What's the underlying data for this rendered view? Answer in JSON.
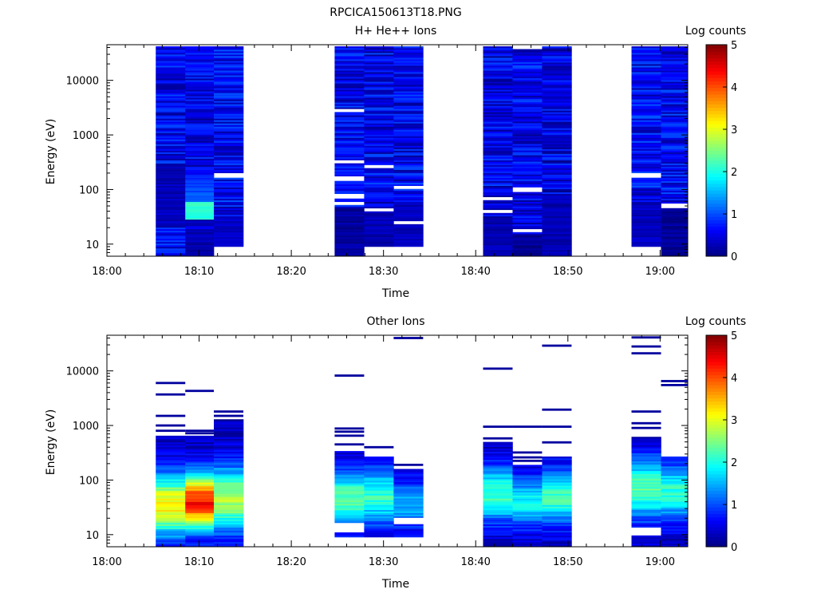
{
  "page_title": "RPCICA150613T18.PNG",
  "chart_data": [
    {
      "type": "heatmap",
      "title": "H+ He++ Ions",
      "xlabel": "Time",
      "ylabel": "Energy (eV)",
      "xticks": [
        "18:00",
        "18:10",
        "18:20",
        "18:30",
        "18:40",
        "18:50",
        "19:00"
      ],
      "xlim_minutes": [
        0,
        63
      ],
      "ylim": [
        6,
        45000
      ],
      "y_scale": "log",
      "yticks": [
        {
          "value": 10,
          "label": "10"
        },
        {
          "value": 100,
          "label": "100"
        },
        {
          "value": 1000,
          "label": "1000"
        },
        {
          "value": 10000,
          "label": "10000"
        }
      ],
      "colorbar": {
        "label": "Log counts",
        "range": [
          0,
          5
        ],
        "ticks": [
          "0",
          "1",
          "2",
          "3",
          "4",
          "5"
        ],
        "colormap": "jet"
      },
      "sweeps": [
        {
          "t_start": 5.3,
          "t_end": 8.5,
          "e_min": 6,
          "e_max": 42000,
          "base_level": 0.55,
          "gaps": [],
          "features": [
            {
              "e_min": 20,
              "e_max": 300,
              "level": 0.3
            }
          ]
        },
        {
          "t_start": 8.5,
          "t_end": 11.6,
          "e_min": 6,
          "e_max": 42000,
          "base_level": 0.5,
          "gaps": [],
          "features": [
            {
              "e_min": 28,
              "e_max": 60,
              "level": 2.1
            },
            {
              "e_min": 60,
              "e_max": 150,
              "level": 1.0
            },
            {
              "e_min": 6,
              "e_max": 18,
              "level": 0.25
            }
          ]
        },
        {
          "t_start": 11.6,
          "t_end": 14.8,
          "e_min": 9,
          "e_max": 42000,
          "base_level": 0.6,
          "gaps": [
            180
          ],
          "features": [
            {
              "e_min": 9,
              "e_max": 30,
              "level": 0.35
            }
          ]
        },
        {
          "t_start": 24.7,
          "t_end": 27.9,
          "e_min": 6,
          "e_max": 42000,
          "base_level": 0.55,
          "gaps": [
            2800,
            330,
            160,
            75,
            55
          ],
          "features": [
            {
              "e_min": 6,
              "e_max": 45,
              "level": 0.15
            }
          ]
        },
        {
          "t_start": 27.9,
          "t_end": 31.1,
          "e_min": 9,
          "e_max": 42000,
          "base_level": 0.55,
          "gaps": [
            260,
            43
          ],
          "features": [
            {
              "e_min": 9,
              "e_max": 40,
              "level": 0.25
            }
          ]
        },
        {
          "t_start": 31.1,
          "t_end": 34.3,
          "e_min": 9,
          "e_max": 42000,
          "base_level": 0.55,
          "gaps": [
            110,
            25
          ],
          "features": [
            {
              "e_min": 9,
              "e_max": 60,
              "level": 0.3
            }
          ]
        },
        {
          "t_start": 40.8,
          "t_end": 44.0,
          "e_min": 6,
          "e_max": 42000,
          "base_level": 0.5,
          "gaps": [
            68,
            40
          ],
          "features": [
            {
              "e_min": 6,
              "e_max": 30,
              "level": 0.25
            }
          ]
        },
        {
          "t_start": 44.0,
          "t_end": 47.2,
          "e_min": 6,
          "e_max": 40000,
          "base_level": 0.55,
          "gaps": [
            40000,
            100,
            18
          ],
          "features": [
            {
              "e_min": 6,
              "e_max": 16,
              "level": 0.1
            }
          ]
        },
        {
          "t_start": 47.2,
          "t_end": 50.4,
          "e_min": 6,
          "e_max": 42000,
          "base_level": 0.5,
          "gaps": [],
          "features": [
            {
              "e_min": 6,
              "e_max": 80,
              "level": 0.25
            }
          ]
        },
        {
          "t_start": 56.9,
          "t_end": 60.1,
          "e_min": 9,
          "e_max": 42000,
          "base_level": 0.6,
          "gaps": [
            180
          ],
          "features": [
            {
              "e_min": 9,
              "e_max": 60,
              "level": 0.3
            }
          ]
        },
        {
          "t_start": 60.1,
          "t_end": 63.0,
          "e_min": 6,
          "e_max": 42000,
          "base_level": 0.6,
          "gaps": [
            50
          ],
          "features": [
            {
              "e_min": 6,
              "e_max": 45,
              "level": 0.1
            }
          ]
        }
      ]
    },
    {
      "type": "heatmap",
      "title": "Other Ions",
      "xlabel": "Time",
      "ylabel": "Energy (eV)",
      "xticks": [
        "18:00",
        "18:10",
        "18:20",
        "18:30",
        "18:40",
        "18:50",
        "19:00"
      ],
      "xlim_minutes": [
        0,
        63
      ],
      "ylim": [
        6,
        45000
      ],
      "y_scale": "log",
      "yticks": [
        {
          "value": 10,
          "label": "10"
        },
        {
          "value": 100,
          "label": "100"
        },
        {
          "value": 1000,
          "label": "1000"
        },
        {
          "value": 10000,
          "label": "10000"
        }
      ],
      "colorbar": {
        "label": "Log counts",
        "range": [
          0,
          5
        ],
        "ticks": [
          "0",
          "1",
          "2",
          "3",
          "4",
          "5"
        ],
        "colormap": "jet"
      },
      "sweeps": [
        {
          "t_start": 5.3,
          "t_end": 8.5,
          "e_min": 6,
          "e_max": 650,
          "peak_energy": 35,
          "peak_level": 3.2,
          "width": 0.55,
          "lines": [
            6000,
            3700,
            1500,
            1000,
            800
          ]
        },
        {
          "t_start": 8.5,
          "t_end": 11.6,
          "e_min": 6,
          "e_max": 650,
          "peak_energy": 40,
          "peak_level": 4.3,
          "width": 0.5,
          "lines": [
            4300,
            800,
            720
          ]
        },
        {
          "t_start": 11.6,
          "t_end": 14.8,
          "e_min": 6,
          "e_max": 1300,
          "peak_energy": 45,
          "peak_level": 2.7,
          "width": 0.6,
          "lines": [
            1800,
            1500
          ]
        },
        {
          "t_start": 24.7,
          "t_end": 27.9,
          "e_min": 9,
          "e_max": 340,
          "peak_energy": 45,
          "peak_level": 2.4,
          "width": 0.5,
          "lines": [
            8200,
            880,
            770,
            650,
            450
          ],
          "holes": [
            [
              11,
              16
            ]
          ]
        },
        {
          "t_start": 27.9,
          "t_end": 31.1,
          "e_min": 9,
          "e_max": 270,
          "peak_energy": 50,
          "peak_level": 2.1,
          "width": 0.5,
          "lines": [
            400
          ]
        },
        {
          "t_start": 31.1,
          "t_end": 34.3,
          "e_min": 9,
          "e_max": 160,
          "peak_energy": 35,
          "peak_level": 1.5,
          "width": 0.45,
          "lines": [
            40000,
            190
          ],
          "holes": [
            [
              16,
              20
            ]
          ]
        },
        {
          "t_start": 40.8,
          "t_end": 44.0,
          "e_min": 6,
          "e_max": 500,
          "peak_energy": 55,
          "peak_level": 2.2,
          "width": 0.5,
          "lines": [
            11000,
            950,
            580
          ]
        },
        {
          "t_start": 44.0,
          "t_end": 47.2,
          "e_min": 6,
          "e_max": 190,
          "peak_energy": 40,
          "peak_level": 1.9,
          "width": 0.45,
          "lines": [
            950,
            320,
            260,
            225
          ]
        },
        {
          "t_start": 47.2,
          "t_end": 50.4,
          "e_min": 6,
          "e_max": 270,
          "peak_energy": 50,
          "peak_level": 2.2,
          "width": 0.5,
          "lines": [
            29000,
            1950,
            950,
            490
          ]
        },
        {
          "t_start": 56.9,
          "t_end": 60.1,
          "e_min": 6,
          "e_max": 620,
          "peak_energy": 70,
          "peak_level": 2.3,
          "width": 0.55,
          "lines": [
            41000,
            28000,
            21000,
            1800,
            1100,
            900
          ],
          "holes": [
            [
              9.5,
              14
            ]
          ]
        },
        {
          "t_start": 60.1,
          "t_end": 63.0,
          "e_min": 6,
          "e_max": 270,
          "peak_energy": 60,
          "peak_level": 2.1,
          "width": 0.5,
          "lines": [
            6500,
            5500
          ]
        }
      ]
    }
  ]
}
